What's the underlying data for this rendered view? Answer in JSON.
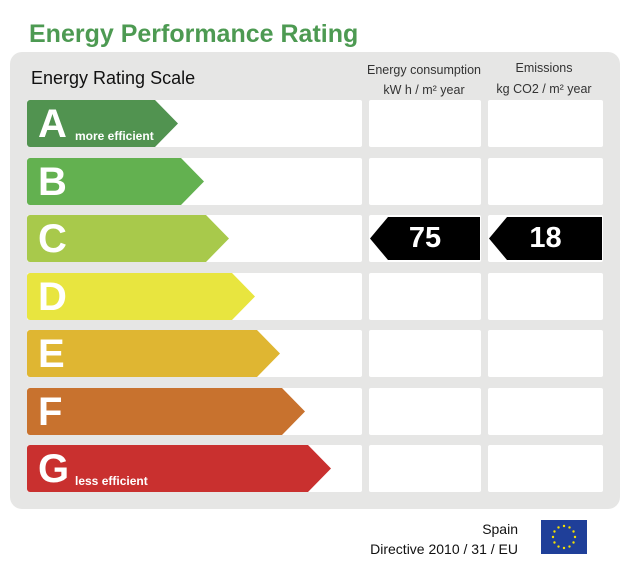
{
  "title": "Energy Performance Rating",
  "scale_heading": "Energy Rating Scale",
  "columns": {
    "consumption": {
      "line1": "Energy consumption",
      "line2": "kW h / m² year"
    },
    "emissions": {
      "line1": "Emissions",
      "line2": "kg CO2 / m² year"
    }
  },
  "ratings": [
    {
      "letter": "A",
      "label": "more efficient",
      "color": "#519350"
    },
    {
      "letter": "B",
      "label": "",
      "color": "#63b150"
    },
    {
      "letter": "C",
      "label": "",
      "color": "#a8c94b"
    },
    {
      "letter": "D",
      "label": "",
      "color": "#e8e53f"
    },
    {
      "letter": "E",
      "label": "",
      "color": "#dfb632"
    },
    {
      "letter": "F",
      "label": "",
      "color": "#c8722e"
    },
    {
      "letter": "G",
      "label": "less efficient",
      "color": "#c9302f"
    }
  ],
  "current": {
    "rating": "C",
    "consumption": "75",
    "emissions": "18"
  },
  "footer": {
    "country": "Spain",
    "directive": "Directive 2010 / 31 / EU"
  },
  "flag": {
    "icon": "eu-flag-icon",
    "background": "#1f3f99",
    "stars": "#f5e100"
  }
}
